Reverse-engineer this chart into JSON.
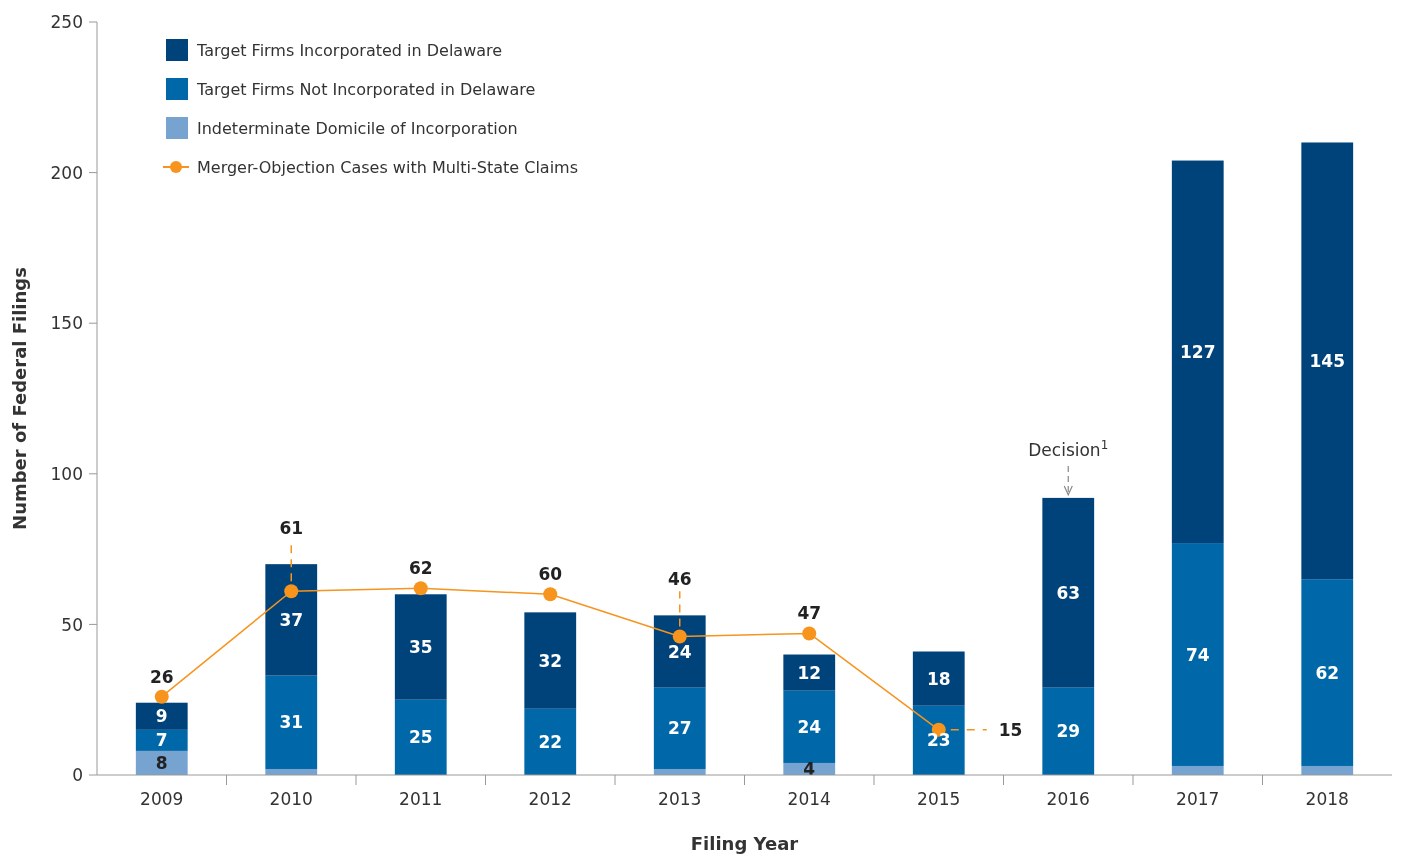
{
  "chart_data": {
    "type": "bar",
    "stacked": true,
    "xlabel": "Filing Year",
    "ylabel": "Number of Federal Filings",
    "categories": [
      "2009",
      "2010",
      "2011",
      "2012",
      "2013",
      "2014",
      "2015",
      "2016",
      "2017",
      "2018"
    ],
    "series": [
      {
        "name": "Indeterminate Domicile of Incorporation",
        "color": "#76a3cf",
        "values": [
          8,
          2,
          0,
          0,
          2,
          4,
          0,
          0,
          3,
          3
        ],
        "value_labels": [
          "8",
          null,
          null,
          null,
          null,
          "4",
          null,
          null,
          null,
          null
        ]
      },
      {
        "name": "Target Firms Not Incorporated in Delaware",
        "color": "#0067a8",
        "values": [
          7,
          31,
          25,
          22,
          27,
          24,
          23,
          29,
          74,
          62
        ],
        "value_labels": [
          "7",
          "31",
          "25",
          "22",
          "27",
          "24",
          "23",
          "29",
          "74",
          "62"
        ]
      },
      {
        "name": "Target Firms Incorporated in Delaware",
        "color": "#00427a",
        "values": [
          9,
          37,
          35,
          32,
          24,
          12,
          18,
          63,
          127,
          145
        ],
        "value_labels": [
          "9",
          "37",
          "35",
          "32",
          "24",
          "12",
          "18",
          "63",
          "127",
          "145"
        ]
      },
      {
        "name": "Merger-Objection Cases with Multi-State Claims",
        "type": "line",
        "color": "#f7941d",
        "marker": "circle",
        "values": [
          26,
          61,
          62,
          60,
          46,
          47,
          15,
          null,
          null,
          null
        ],
        "value_labels": [
          "26",
          "61",
          "62",
          "60",
          "46",
          "47",
          "15",
          null,
          null,
          null
        ]
      }
    ],
    "ylim": [
      0,
      250
    ],
    "yticks": [
      0,
      50,
      100,
      150,
      200,
      250
    ],
    "legend": "top left",
    "grid": false,
    "annotations": [
      {
        "text": "Decision$^{1}$",
        "x": "2016",
        "y": 92
      }
    ]
  }
}
